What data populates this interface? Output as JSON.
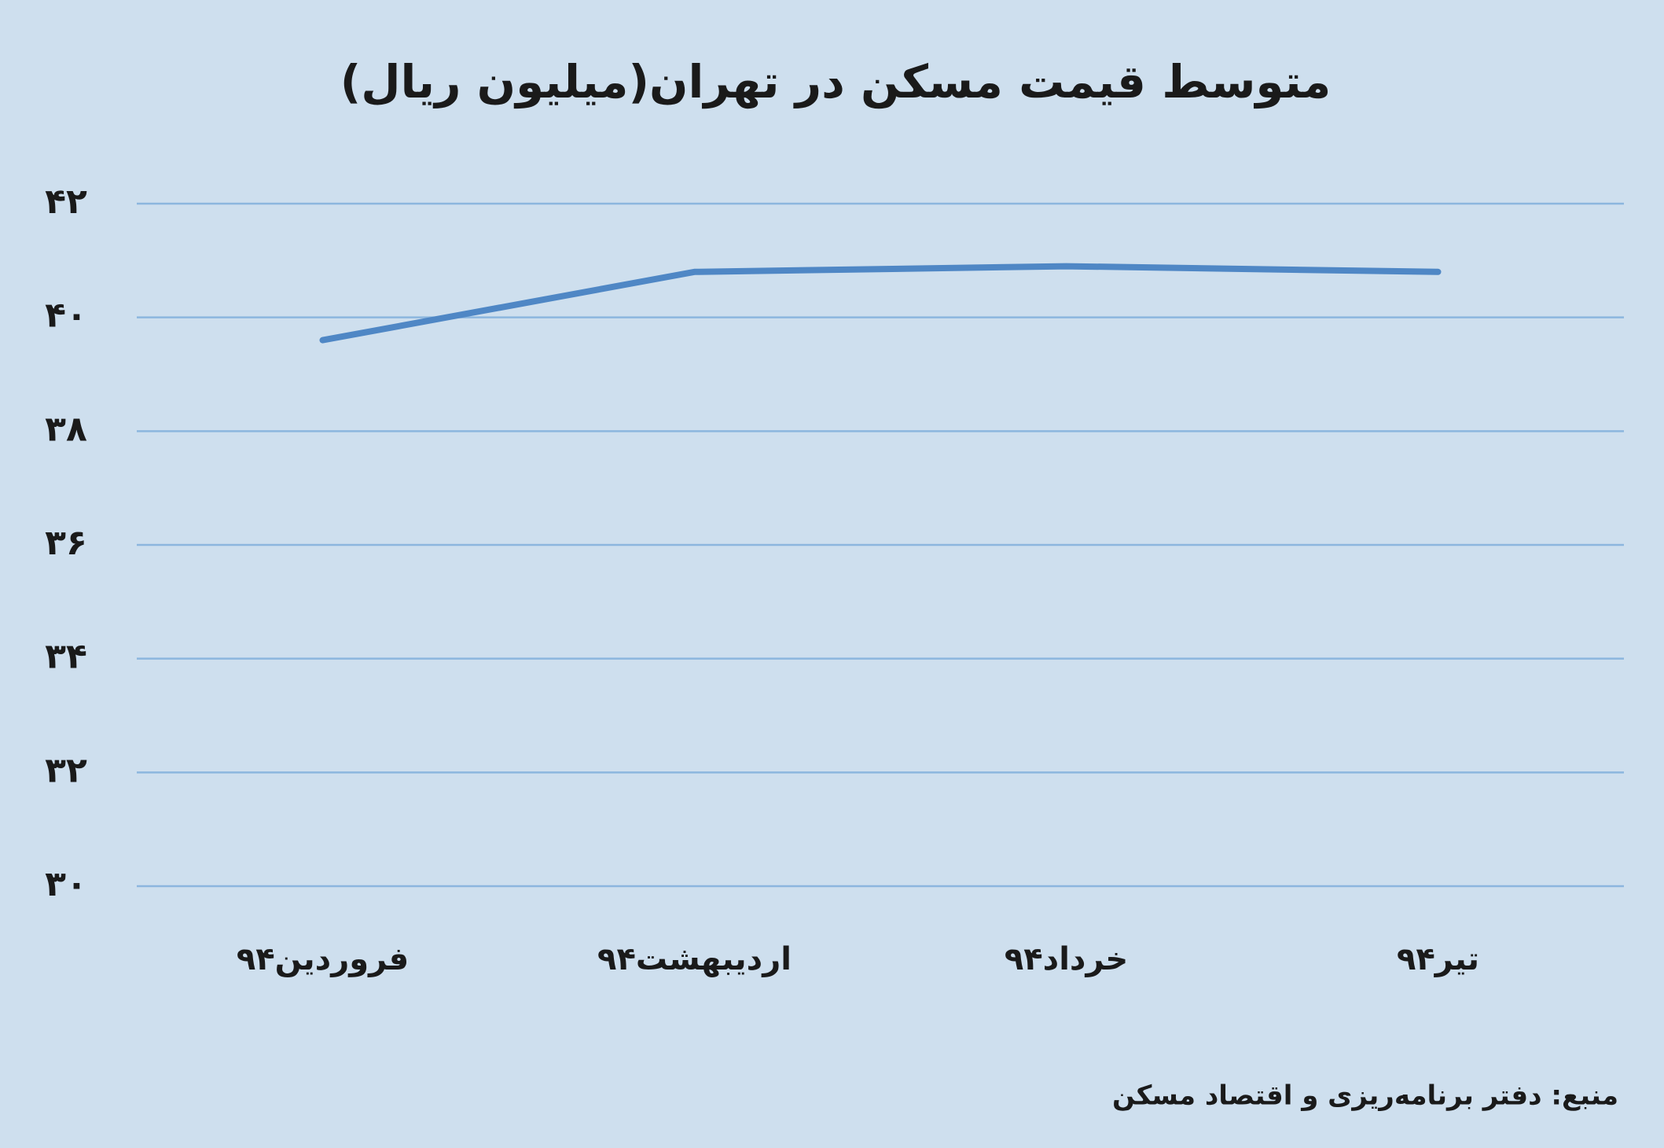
{
  "chart_data": {
    "type": "line",
    "title": "متوسط قیمت مسکن در تهران(میلیون ریال)",
    "source": "منبع: دفتر برنامه‌ریزی و اقتصاد مسکن",
    "categories": [
      "فروردین۹۴",
      "اردیبهشت۹۴",
      "خرداد۹۴",
      "تیر۹۴"
    ],
    "series": [
      {
        "name": "متوسط قیمت مسکن",
        "color": "#4f87c5",
        "values": [
          39.6,
          40.8,
          40.9,
          40.8
        ]
      }
    ],
    "ylim": [
      30,
      42
    ],
    "yticks": [
      {
        "value": 30,
        "label": "۳۰"
      },
      {
        "value": 32,
        "label": "۳۲"
      },
      {
        "value": 34,
        "label": "۳۴"
      },
      {
        "value": 36,
        "label": "۳۶"
      },
      {
        "value": 38,
        "label": "۳۸"
      },
      {
        "value": 40,
        "label": "۴۰"
      },
      {
        "value": 42,
        "label": "۴۲"
      }
    ],
    "grid": true
  }
}
